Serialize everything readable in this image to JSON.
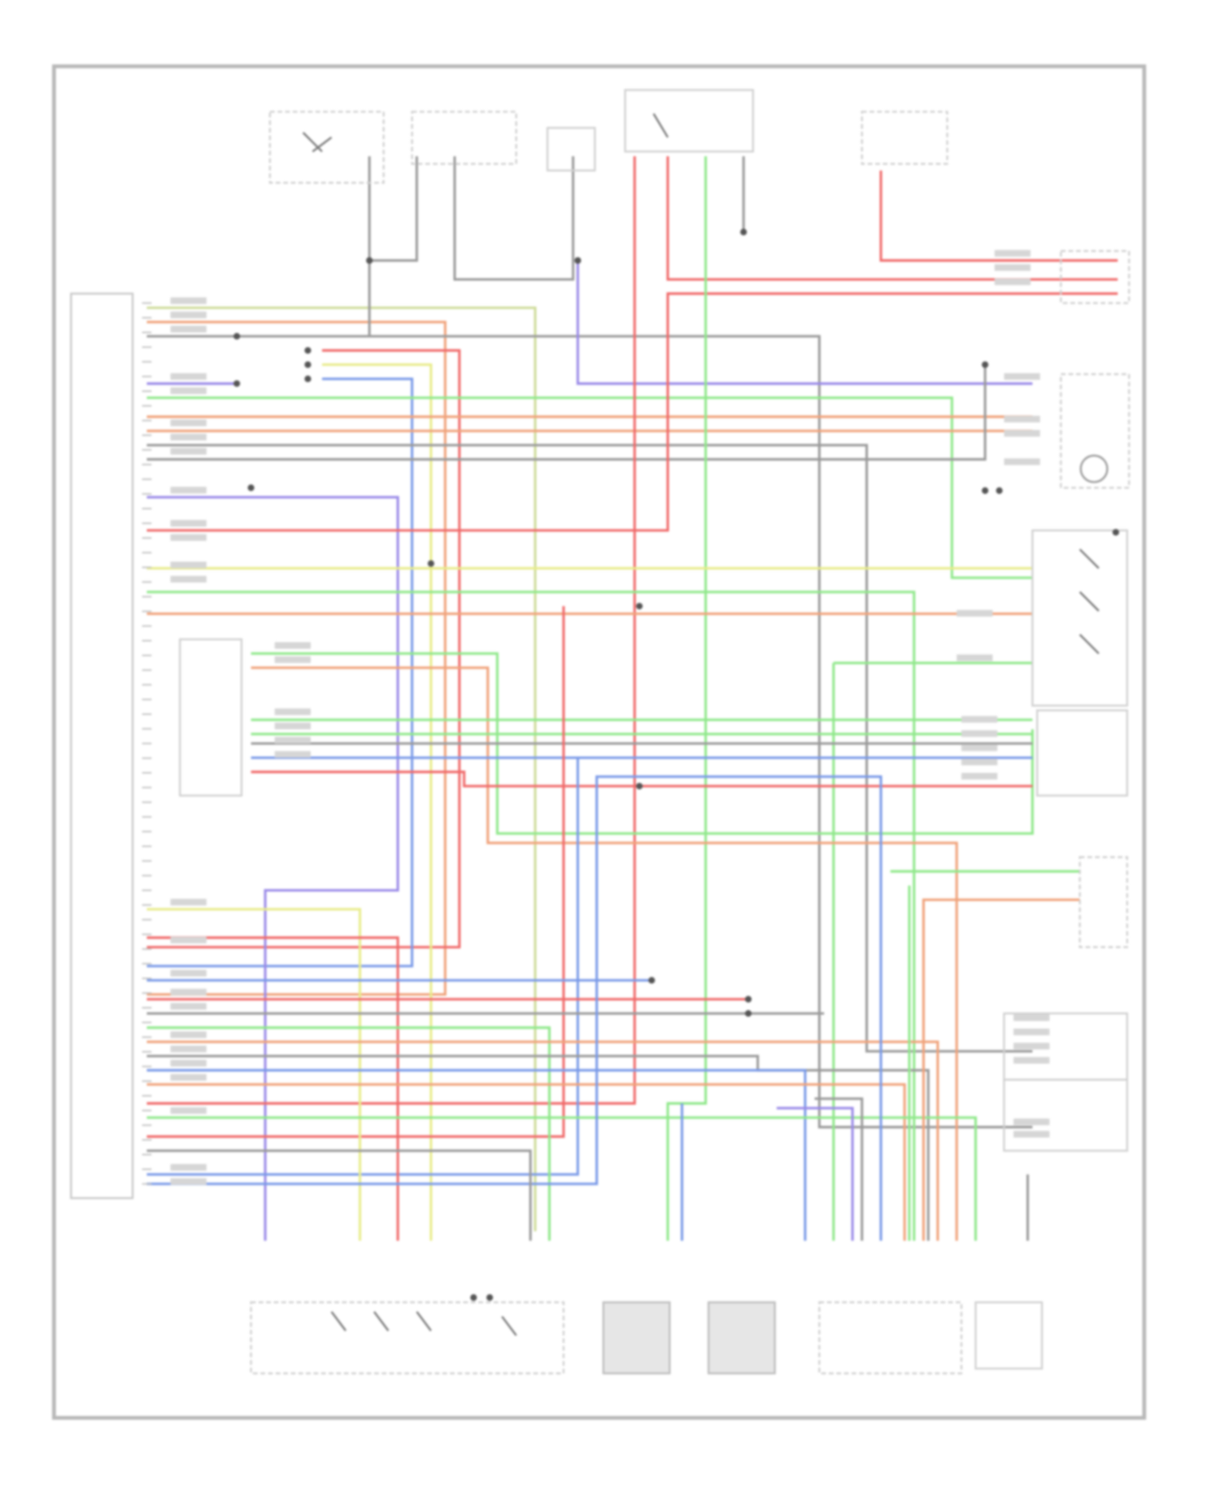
{
  "diagram": {
    "wire_colors": {
      "red": "#f06a6a",
      "orange": "#f0a27a",
      "yellow": "#e8ec8a",
      "green": "#8fe88a",
      "olive": "#cfdc9a",
      "blue": "#7a9ae8",
      "purple": "#9a8ae8",
      "gray": "#9a9a9a",
      "frame": "#b4b4b4"
    },
    "components": [
      {
        "id": "ecu",
        "icon": "control-module"
      },
      {
        "id": "switch-top-left",
        "icon": "switch-icon"
      },
      {
        "id": "sensor-top",
        "icon": "sensor-icon"
      },
      {
        "id": "connector-top",
        "icon": "connector-icon"
      },
      {
        "id": "relay-top",
        "icon": "relay-icon"
      },
      {
        "id": "fuse-top-right",
        "icon": "fuse-icon"
      },
      {
        "id": "connector-right-1",
        "icon": "connector-icon"
      },
      {
        "id": "motor-right",
        "icon": "motor-icon"
      },
      {
        "id": "switch-right",
        "icon": "switch-icon"
      },
      {
        "id": "sensor-right",
        "icon": "sensor-icon"
      },
      {
        "id": "connector-right-2",
        "icon": "connector-icon"
      },
      {
        "id": "inner-module",
        "icon": "module-icon"
      },
      {
        "id": "switch-bottom",
        "icon": "switch-icon"
      },
      {
        "id": "speed-sensor-1",
        "icon": "sensor-icon"
      },
      {
        "id": "speed-sensor-2",
        "icon": "sensor-icon"
      },
      {
        "id": "connector-bottom",
        "icon": "connector-icon"
      },
      {
        "id": "sensor-bottom-right",
        "icon": "sensor-icon"
      }
    ]
  }
}
